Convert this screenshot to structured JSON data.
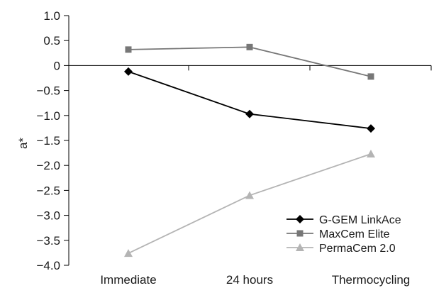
{
  "chart_data": {
    "type": "line",
    "title": "",
    "xlabel": "",
    "ylabel": "a*",
    "categories": [
      "Immediate",
      "24 hours",
      "Thermocycling"
    ],
    "ylim": [
      -4.0,
      1.0
    ],
    "yticks": [
      "1.0",
      "0.5",
      "0",
      "−0.5",
      "−1.0",
      "−1.5",
      "−2.0",
      "−2.5",
      "−3.0",
      "−3.5",
      "−4.0"
    ],
    "ytick_values": [
      1.0,
      0.5,
      0,
      -0.5,
      -1.0,
      -1.5,
      -2.0,
      -2.5,
      -3.0,
      -3.5,
      -4.0
    ],
    "grid": false,
    "legend_position": "bottom-right",
    "series": [
      {
        "name": "G-GEM LinkAce",
        "values": [
          -0.12,
          -0.97,
          -1.26
        ],
        "color": "#000000",
        "marker": "diamond"
      },
      {
        "name": "MaxCem Elite",
        "values": [
          0.32,
          0.37,
          -0.22
        ],
        "color": "#777777",
        "marker": "square"
      },
      {
        "name": "PermaCem 2.0",
        "values": [
          -3.76,
          -2.6,
          -1.77
        ],
        "color": "#b4b4b4",
        "marker": "triangle"
      }
    ]
  }
}
